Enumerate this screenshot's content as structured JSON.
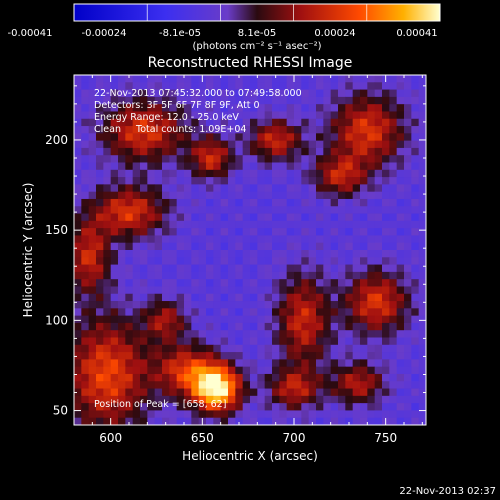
{
  "chart_data": {
    "type": "heatmap",
    "title": "Reconstructed RHESSI Image",
    "xlabel": "Heliocentric X (arcsec)",
    "ylabel": "Heliocentric Y (arcsec)",
    "xlim": [
      580,
      772
    ],
    "ylim": [
      42,
      236
    ],
    "x_ticks": [
      600,
      650,
      700,
      750
    ],
    "y_ticks": [
      50,
      100,
      150,
      200
    ],
    "colorbar": {
      "tick_labels": [
        "-0.00041",
        "-0.00024",
        "-8.1e-05",
        "8.1e-05",
        "0.00024",
        "0.00041"
      ],
      "range": [
        -0.00041,
        0.00041
      ],
      "unit_label": "(photons cm⁻² s⁻¹ asec⁻²)"
    },
    "annotations": [
      "22-Nov-2013 07:45:32.000 to 07:49:58.000",
      "Detectors: 3F 5F 6F 7F 8F 9F, Att 0",
      "Energy Range: 12.0 - 25.0 keV",
      "Clean     Total counts: 1.09E+04"
    ],
    "peak_label": "Position of Peak = [658, 62]",
    "peak": {
      "x": 658,
      "y": 62,
      "value": 0.00041
    },
    "sources": [
      {
        "x": 658,
        "y": 62,
        "sx": 9,
        "sy": 9,
        "amp": 1.0
      },
      {
        "x": 642,
        "y": 72,
        "sx": 12,
        "sy": 10,
        "amp": 0.55
      },
      {
        "x": 598,
        "y": 70,
        "sx": 16,
        "sy": 22,
        "amp": 0.6
      },
      {
        "x": 588,
        "y": 135,
        "sx": 8,
        "sy": 14,
        "amp": 0.5
      },
      {
        "x": 610,
        "y": 160,
        "sx": 14,
        "sy": 10,
        "amp": 0.55
      },
      {
        "x": 618,
        "y": 205,
        "sx": 16,
        "sy": 12,
        "amp": 0.55
      },
      {
        "x": 655,
        "y": 190,
        "sx": 8,
        "sy": 8,
        "amp": 0.5
      },
      {
        "x": 690,
        "y": 200,
        "sx": 10,
        "sy": 8,
        "amp": 0.5
      },
      {
        "x": 740,
        "y": 205,
        "sx": 14,
        "sy": 14,
        "amp": 0.55
      },
      {
        "x": 725,
        "y": 180,
        "sx": 10,
        "sy": 8,
        "amp": 0.45
      },
      {
        "x": 705,
        "y": 100,
        "sx": 10,
        "sy": 18,
        "amp": 0.5
      },
      {
        "x": 745,
        "y": 110,
        "sx": 12,
        "sy": 12,
        "amp": 0.55
      },
      {
        "x": 700,
        "y": 62,
        "sx": 10,
        "sy": 8,
        "amp": 0.45
      },
      {
        "x": 735,
        "y": 65,
        "sx": 10,
        "sy": 8,
        "amp": 0.45
      },
      {
        "x": 630,
        "y": 100,
        "sx": 8,
        "sy": 8,
        "amp": 0.4
      }
    ]
  },
  "footer_date": "22-Nov-2013 02:37"
}
